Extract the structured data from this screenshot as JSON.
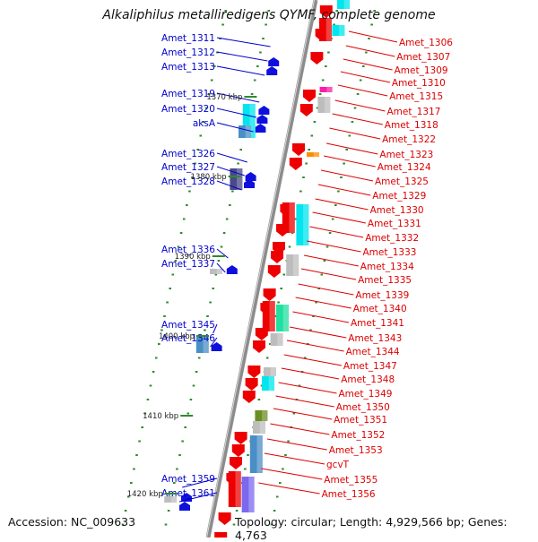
{
  "title": "Alkaliphilus metalliredigens QYMF, complete genome",
  "footer": {
    "accession": "Accession: NC_009633",
    "topology": "Topology: circular; Length: 4,929,566 bp; Genes: 4,763"
  },
  "colors": {
    "backbone": "#8c8c8c",
    "left_strand_label": "#0000cc",
    "right_strand_label": "#dd0000",
    "gene_red": "#ee0000",
    "gene_blue": "#1010dd",
    "dot_green": "#2e8b2e",
    "cyan": "#00e5ee",
    "blue_steel": "#4a8ec6",
    "purple_dark": "#4a4a8a",
    "grey": "#bdbdbd",
    "magenta": "#ff1aa8",
    "orange": "#ff8c00",
    "olive": "#6b8e23",
    "mint": "#20e0a0",
    "slate": "#7b68ee"
  },
  "scale_marks": [
    "1370 kbp",
    "1380 kbp",
    "1390 kbp",
    "1400 kbp",
    "1410 kbp",
    "1420 kbp"
  ],
  "left_genes": [
    "Amet_1311",
    "Amet_1312",
    "Amet_1313",
    "Amet_1319",
    "Amet_1320",
    "aksA",
    "Amet_1326",
    "Amet_1327",
    "Amet_1328",
    "Amet_1336",
    "Amet_1337",
    "Amet_1345",
    "Amet_1346",
    "Amet_1359",
    "Amet_1361"
  ],
  "right_genes": [
    "Amet_1306",
    "Amet_1307",
    "Amet_1309",
    "Amet_1310",
    "Amet_1315",
    "Amet_1317",
    "Amet_1318",
    "Amet_1322",
    "Amet_1323",
    "Amet_1324",
    "Amet_1325",
    "Amet_1329",
    "Amet_1330",
    "Amet_1331",
    "Amet_1332",
    "Amet_1333",
    "Amet_1334",
    "Amet_1335",
    "Amet_1339",
    "Amet_1340",
    "Amet_1341",
    "Amet_1343",
    "Amet_1344",
    "Amet_1347",
    "Amet_1348",
    "Amet_1349",
    "Amet_1350",
    "Amet_1351",
    "Amet_1352",
    "Amet_1353",
    "gcvT",
    "Amet_1355",
    "Amet_1356"
  ]
}
